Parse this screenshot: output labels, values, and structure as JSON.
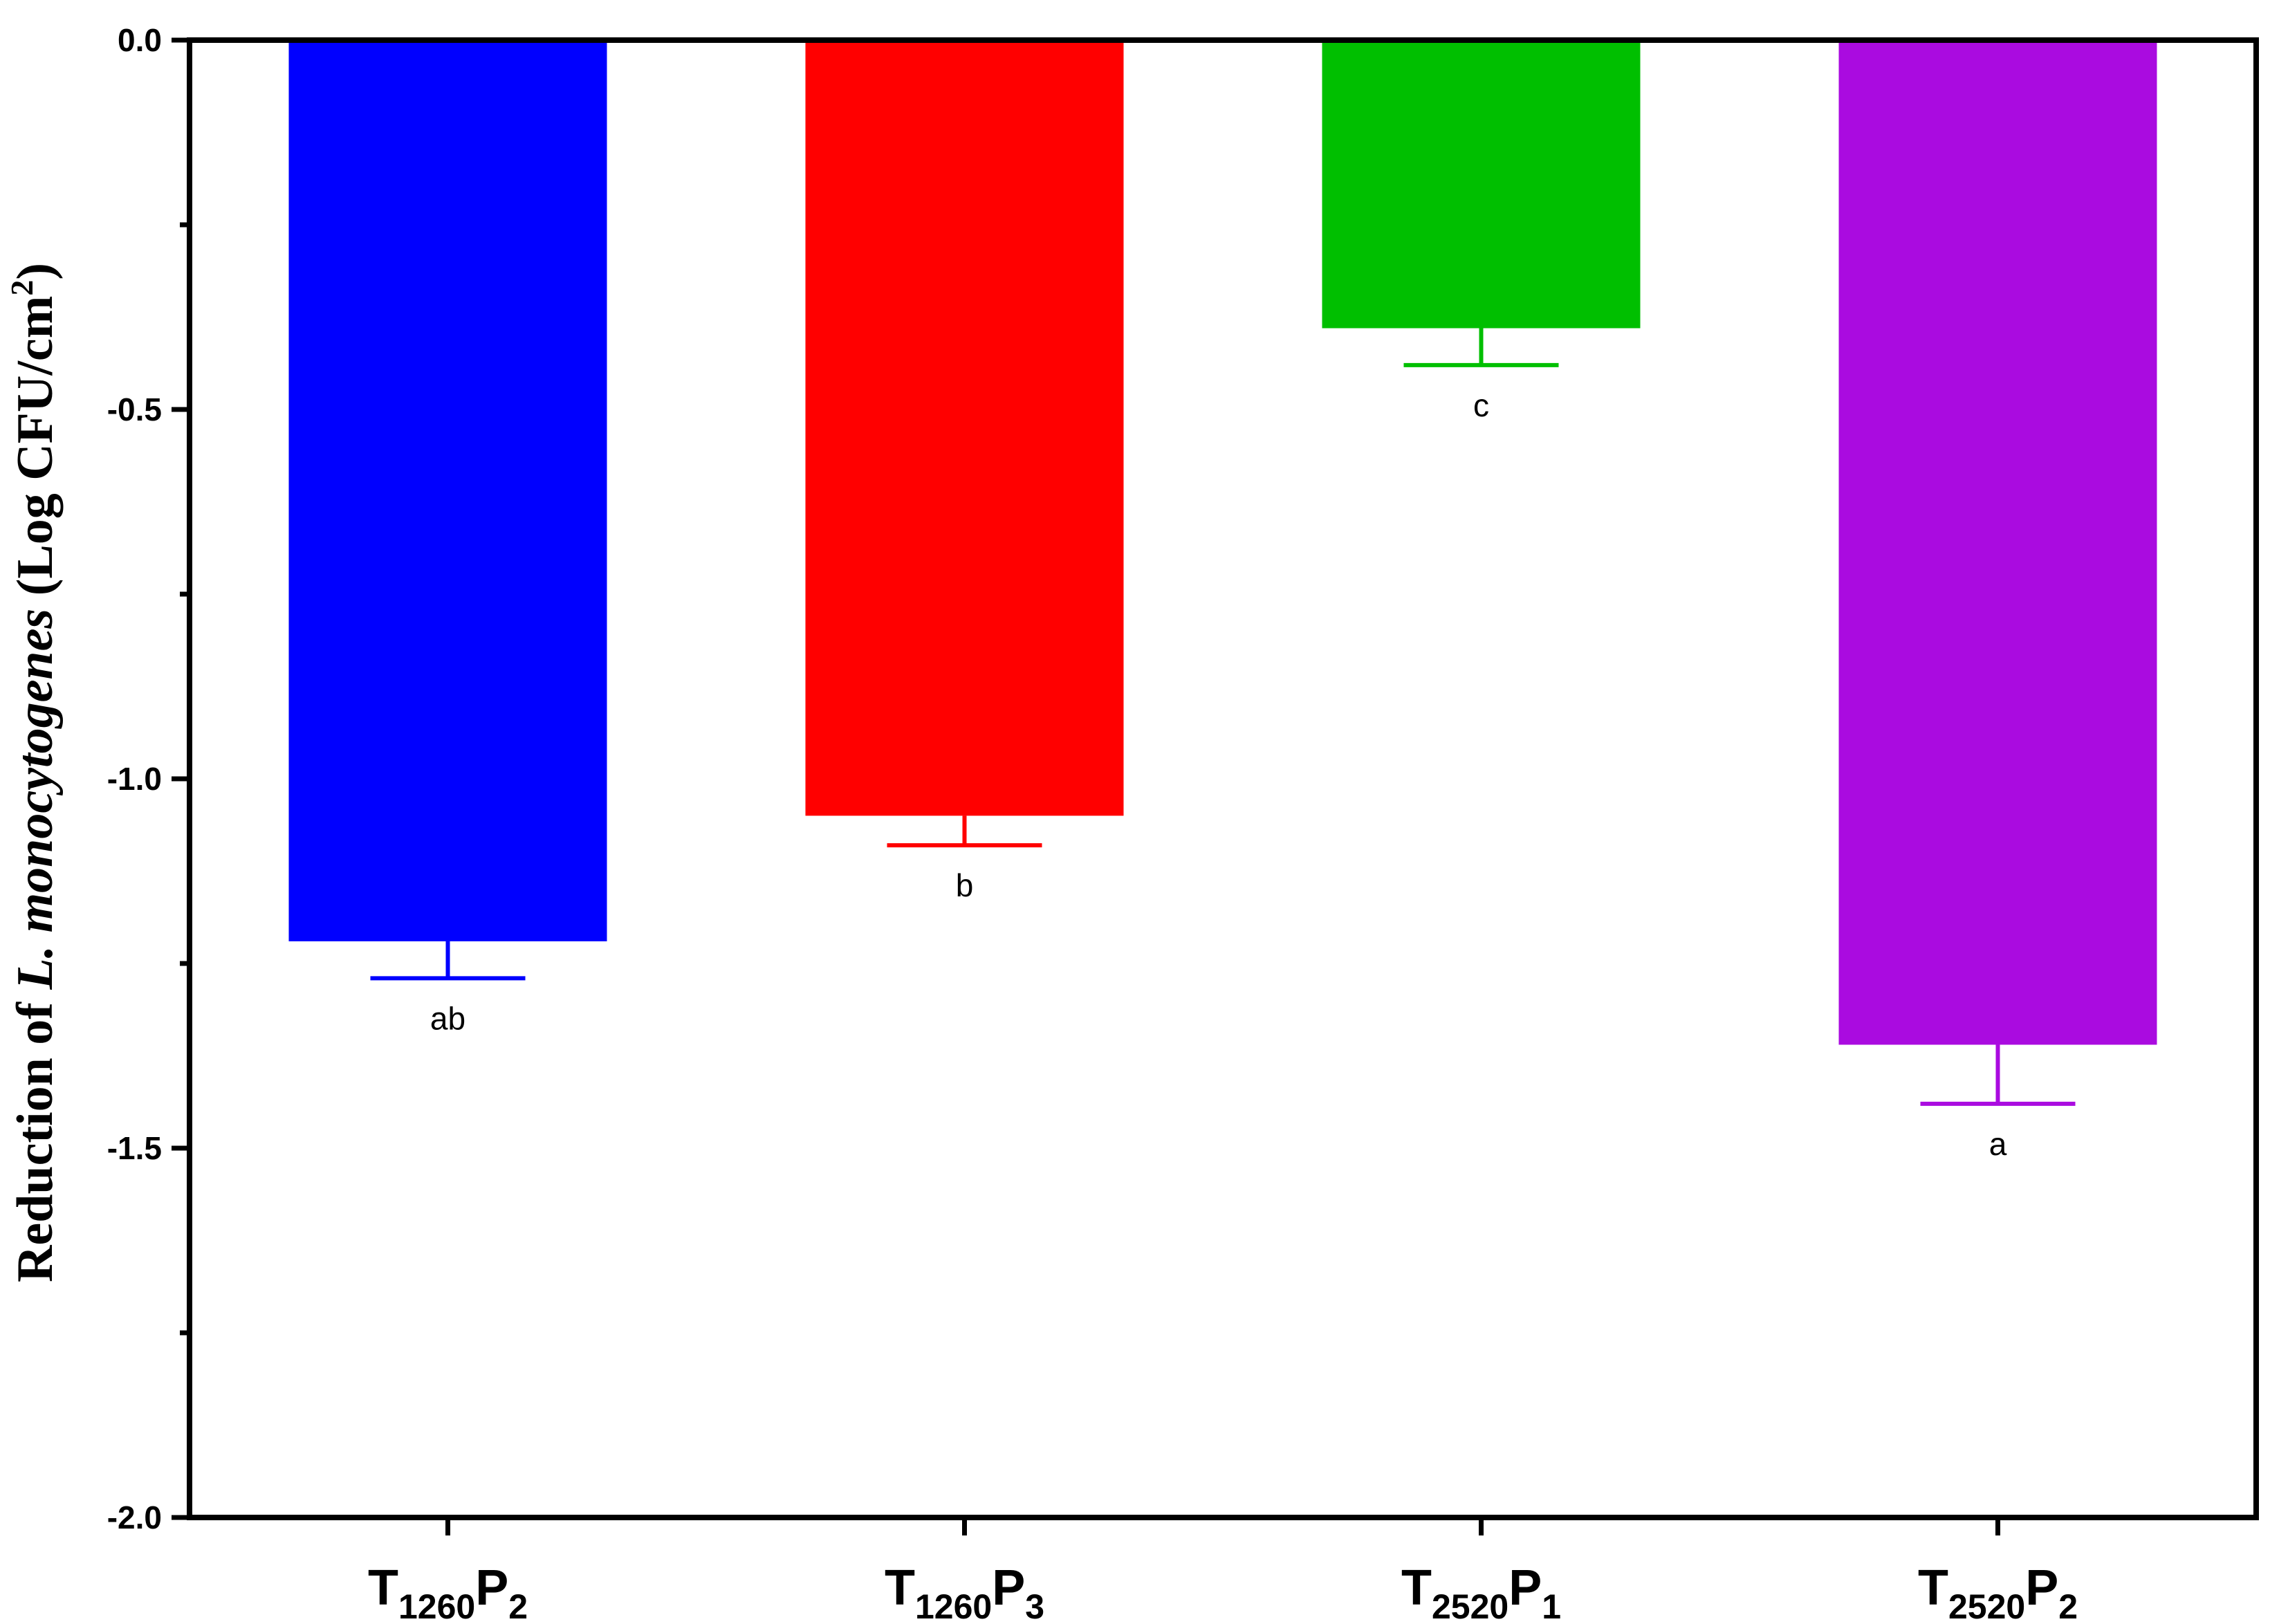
{
  "chart_data": {
    "type": "bar",
    "ylabel": {
      "prefix": "Reduction of ",
      "species": "L. monocytogenes",
      "unit": " (Log CFU/cm",
      "unit_sup": "2",
      "unit_close": ")"
    },
    "ylim": [
      -2.0,
      0.0
    ],
    "yticks_major": [
      0.0,
      -0.5,
      -1.0,
      -1.5,
      -2.0
    ],
    "ytick_labels": [
      "0.0",
      "-0.5",
      "-1.0",
      "-1.5",
      "-2.0"
    ],
    "yticks_minor": [
      -0.25,
      -0.75,
      -1.25,
      -1.75
    ],
    "grid": false,
    "legend": "none",
    "categories": [
      {
        "T": "T",
        "T_sub": "1260",
        "P": "P",
        "P_sub": "2"
      },
      {
        "T": "T",
        "T_sub": "1260",
        "P": "P",
        "P_sub": "3"
      },
      {
        "T": "T",
        "T_sub": "2520",
        "P": "P",
        "P_sub": "1"
      },
      {
        "T": "T",
        "T_sub": "2520",
        "P": "P",
        "P_sub": "2"
      }
    ],
    "values": [
      -1.22,
      -1.05,
      -0.39,
      -1.36
    ],
    "errors": [
      0.05,
      0.04,
      0.05,
      0.08
    ],
    "significance": [
      "ab",
      "b",
      "c",
      "a"
    ],
    "colors": [
      "#0000FF",
      "#FF0000",
      "#00BF00",
      "#AA0BE0"
    ]
  }
}
